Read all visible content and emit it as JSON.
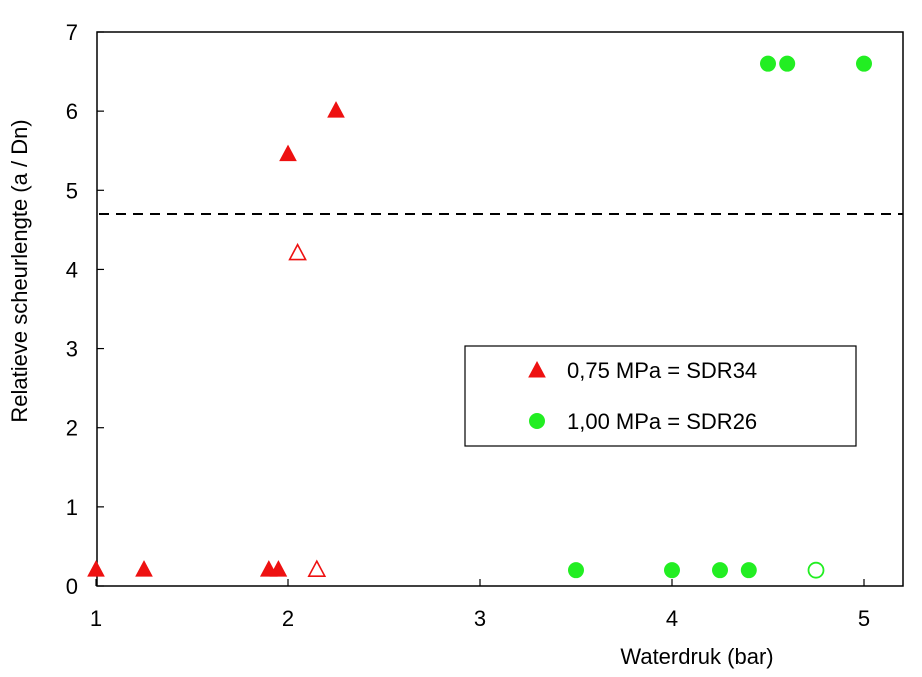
{
  "chart_data": {
    "type": "scatter",
    "title": "",
    "xlabel": "Waterdruk (bar)",
    "ylabel": "Relatieve scheurlengte (a / Dn)",
    "xlim": [
      1,
      5.2
    ],
    "ylim": [
      0,
      7
    ],
    "x_ticks": [
      "1",
      "2",
      "3",
      "4",
      "5"
    ],
    "y_ticks": [
      "0",
      "1",
      "2",
      "3",
      "4",
      "5",
      "6",
      "7"
    ],
    "grid": false,
    "legend_position": "center-right",
    "reference_line": {
      "y": 4.7,
      "style": "dashed"
    },
    "series": [
      {
        "name": "0,75 MPa = SDR34",
        "marker": "triangle",
        "color": "#ee1111",
        "filled": [
          [
            1.0,
            0.2
          ],
          [
            1.25,
            0.2
          ],
          [
            1.9,
            0.2
          ],
          [
            1.95,
            0.2
          ],
          [
            2.0,
            5.45
          ],
          [
            2.25,
            6.0
          ]
        ],
        "open": [
          [
            2.05,
            4.2
          ],
          [
            2.15,
            0.2
          ]
        ]
      },
      {
        "name": "1,00 MPa = SDR26",
        "marker": "circle",
        "color": "#22ee22",
        "filled": [
          [
            3.5,
            0.2
          ],
          [
            4.0,
            0.2
          ],
          [
            4.25,
            0.2
          ],
          [
            4.4,
            0.2
          ],
          [
            4.5,
            6.6
          ],
          [
            4.6,
            6.6
          ],
          [
            5.0,
            6.6
          ]
        ],
        "open": [
          [
            4.75,
            0.2
          ]
        ]
      }
    ]
  }
}
